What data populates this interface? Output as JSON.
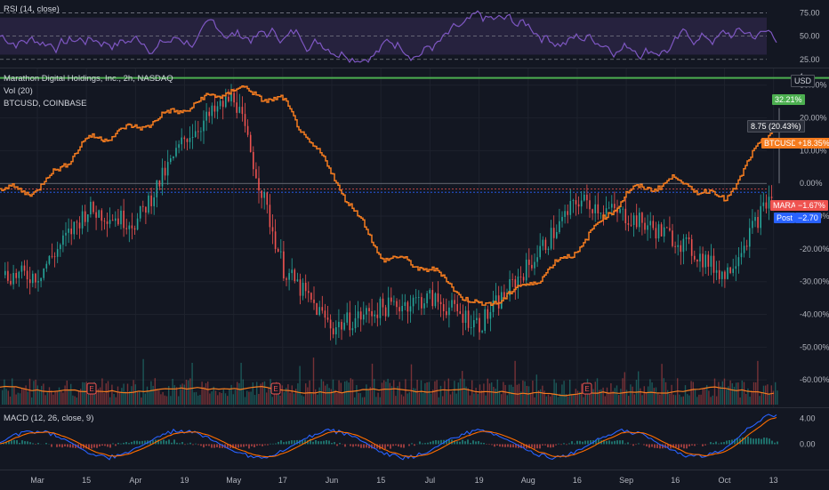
{
  "rsi": {
    "label": "RSI (14, close)",
    "ticks": [
      "75.00",
      "50.00",
      "25.00"
    ],
    "tick_values": [
      75,
      50,
      25
    ],
    "range": [
      20,
      85
    ],
    "band": [
      30,
      70
    ],
    "color": "#7e57c2"
  },
  "main": {
    "title": "Marathon Digital Holdings, Inc., 2h, NASDAQ",
    "vol_label": "Vol (20)",
    "compare_label": "BTCUSD, COINBASE",
    "currency_badge": "USD",
    "ticks": [
      "30.00%",
      "20.00%",
      "10.00%",
      "0.00%",
      "-10.00%",
      "-20.00%",
      "-30.00%",
      "-40.00%",
      "-50.00%",
      "-60.00%"
    ],
    "tick_values": [
      30,
      20,
      10,
      0,
      -10,
      -20,
      -30,
      -40,
      -50,
      -60
    ],
    "y_range": [
      -67,
      34
    ],
    "top_tick_partial": "4",
    "colors": {
      "up": "#26a69a",
      "down": "#ef5350",
      "btc": "#f57c1f",
      "green_line": "#4caf50",
      "vol_ma": "#f57c1f"
    },
    "green_line_value": 32.21,
    "green_tag": "32.21%",
    "tooltip": "8.75 (20.43%)",
    "btc_tag": {
      "name": "BTCUSD",
      "value": "+18.35%"
    },
    "mara_tag": {
      "name": "MARA",
      "value": "−1.67%"
    },
    "post_tag": {
      "name": "Post",
      "value": "−2.70"
    },
    "earnings_marker": "E"
  },
  "macd": {
    "label": "MACD (12, 26, close, 9)",
    "ticks": [
      "4.00",
      "0.00"
    ],
    "tick_values": [
      4,
      0
    ],
    "range": [
      -3.5,
      5
    ],
    "colors": {
      "macd": "#2962ff",
      "signal": "#ff6d00"
    }
  },
  "x_axis": {
    "labels": [
      "Mar",
      "15",
      "Apr",
      "19",
      "May",
      "17",
      "Jun",
      "15",
      "Jul",
      "19",
      "Aug",
      "16",
      "Sep",
      "16",
      "Oct",
      "13"
    ]
  },
  "chart_data": {
    "type": "line",
    "title": "Marathon Digital Holdings, Inc., 2h, NASDAQ",
    "xlabel": "",
    "ylabel": "",
    "x": [
      "Mar",
      "15",
      "Apr",
      "19",
      "May",
      "17",
      "Jun",
      "15",
      "Jul",
      "19",
      "Aug",
      "16",
      "Sep",
      "16",
      "Oct",
      "13"
    ],
    "ylim": [
      -67,
      34
    ],
    "series": [
      {
        "name": "BTCUSD",
        "values": [
          -2,
          13,
          17,
          23,
          29,
          25,
          3,
          -22,
          -26,
          -38,
          -31,
          -20,
          -3,
          1,
          -5,
          18
        ]
      },
      {
        "name": "MARA",
        "values": [
          -28,
          -8,
          -12,
          14,
          27,
          -26,
          -44,
          -38,
          -35,
          -43,
          -25,
          -5,
          -10,
          -17,
          -28,
          -2
        ]
      }
    ]
  }
}
